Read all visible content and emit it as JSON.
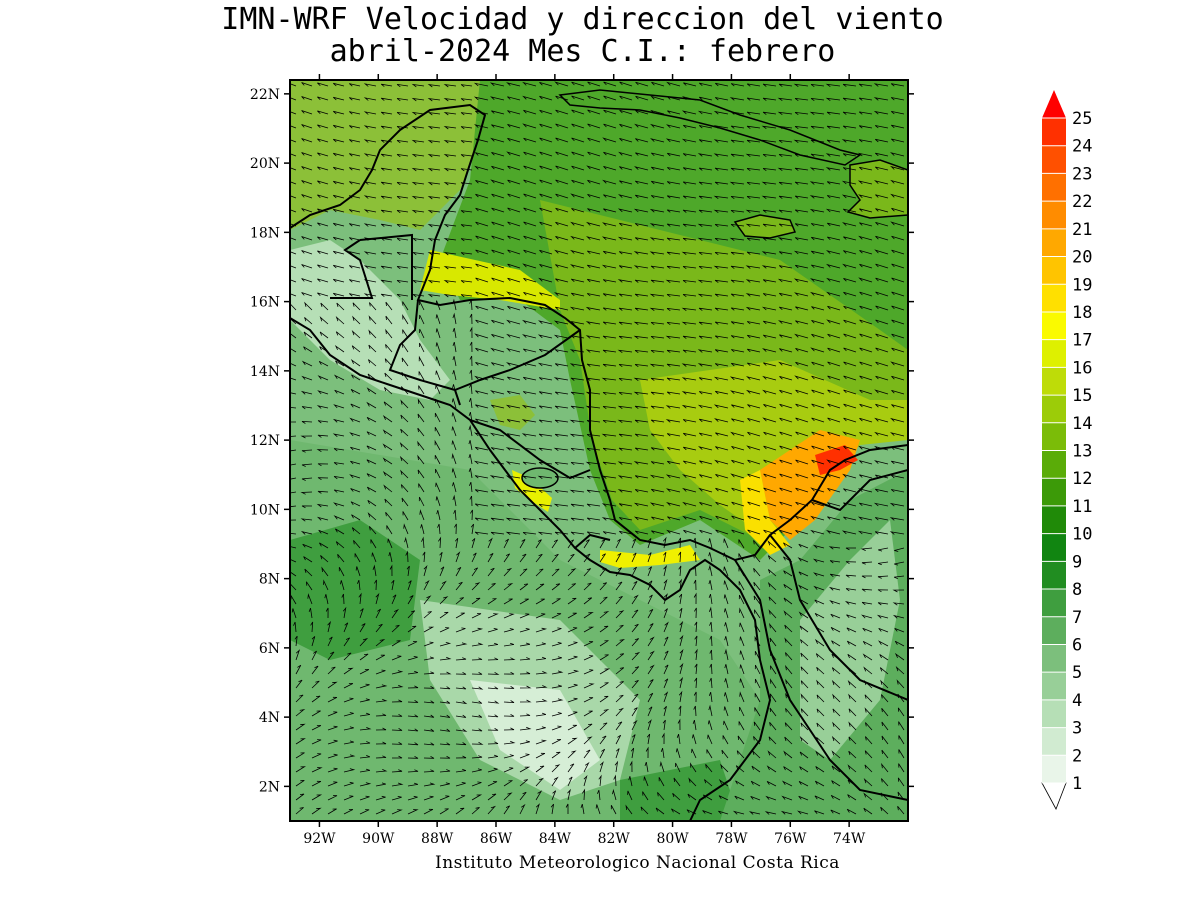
{
  "title_line1": "IMN-WRF Velocidad y direccion del viento",
  "title_line2": "abril-2024 Mes C.I.: febrero",
  "credit": "Instituto Meteorologico Nacional Costa Rica",
  "map": {
    "lon_range": [
      -93.0,
      -72.0
    ],
    "lat_range": [
      1.0,
      22.4
    ],
    "lon_ticks": [
      {
        "value": -92,
        "label": "92W"
      },
      {
        "value": -90,
        "label": "90W"
      },
      {
        "value": -88,
        "label": "88W"
      },
      {
        "value": -86,
        "label": "86W"
      },
      {
        "value": -84,
        "label": "84W"
      },
      {
        "value": -82,
        "label": "82W"
      },
      {
        "value": -80,
        "label": "80W"
      },
      {
        "value": -78,
        "label": "78W"
      },
      {
        "value": -76,
        "label": "76W"
      },
      {
        "value": -74,
        "label": "74W"
      }
    ],
    "lat_ticks": [
      {
        "value": 2,
        "label": "2N"
      },
      {
        "value": 4,
        "label": "4N"
      },
      {
        "value": 6,
        "label": "6N"
      },
      {
        "value": 8,
        "label": "8N"
      },
      {
        "value": 10,
        "label": "10N"
      },
      {
        "value": 12,
        "label": "12N"
      },
      {
        "value": 14,
        "label": "14N"
      },
      {
        "value": 16,
        "label": "16N"
      },
      {
        "value": 18,
        "label": "18N"
      },
      {
        "value": 20,
        "label": "20N"
      },
      {
        "value": 22,
        "label": "22N"
      }
    ]
  },
  "colorbar": {
    "levels": [
      1,
      2,
      3,
      4,
      5,
      6,
      7,
      8,
      9,
      10,
      11,
      12,
      13,
      14,
      15,
      16,
      17,
      18,
      19,
      20,
      21,
      22,
      23,
      24,
      25
    ],
    "colors": [
      "#e9f5e9",
      "#d1ebd1",
      "#b6dfb6",
      "#98cf98",
      "#7cbf7c",
      "#5dae5d",
      "#3f9e3f",
      "#218d21",
      "#118511",
      "#208a08",
      "#3c9a08",
      "#5aac08",
      "#7bbc08",
      "#9ccc08",
      "#bedc08",
      "#def000",
      "#fafa00",
      "#ffe000",
      "#ffc400",
      "#ffa800",
      "#ff8c00",
      "#ff7000",
      "#ff5000",
      "#ff3000",
      "#ff0000"
    ]
  }
}
